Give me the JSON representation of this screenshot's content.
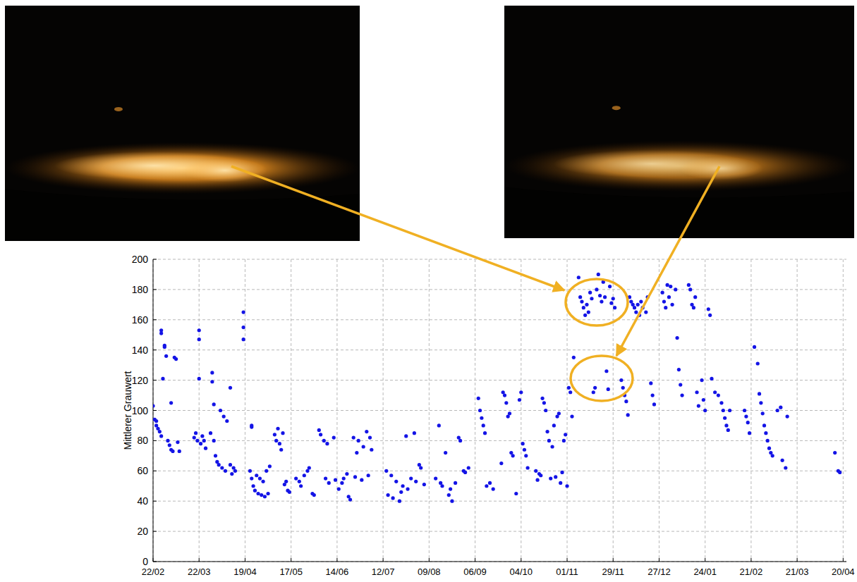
{
  "chart_data": {
    "type": "scatter",
    "y_label": "Mittlerer Grauwert",
    "color": "#1414e6",
    "marker": "circle",
    "grid": true,
    "xlim": [
      0,
      422
    ],
    "ylim": [
      0,
      200
    ],
    "yticks": [
      0,
      20,
      40,
      60,
      80,
      100,
      120,
      140,
      160,
      180,
      200
    ],
    "xticks": [
      {
        "value": 0,
        "label": "22/02"
      },
      {
        "value": 28,
        "label": "22/03"
      },
      {
        "value": 56,
        "label": "19/04"
      },
      {
        "value": 84,
        "label": "17/05"
      },
      {
        "value": 112,
        "label": "14/06"
      },
      {
        "value": 140,
        "label": "12/07"
      },
      {
        "value": 168,
        "label": "09/08"
      },
      {
        "value": 196,
        "label": "06/09"
      },
      {
        "value": 224,
        "label": "04/10"
      },
      {
        "value": 252,
        "label": "01/11"
      },
      {
        "value": 280,
        "label": "29/11"
      },
      {
        "value": 308,
        "label": "27/12"
      },
      {
        "value": 336,
        "label": "24/01"
      },
      {
        "value": 364,
        "label": "21/02"
      },
      {
        "value": 392,
        "label": "21/03"
      },
      {
        "value": 420,
        "label": "20/04"
      }
    ],
    "x": [
      0,
      1,
      2,
      2,
      3,
      4,
      5,
      5,
      5,
      6,
      7,
      7,
      8,
      9,
      10,
      11,
      11,
      12,
      13,
      14,
      15,
      16,
      25,
      26,
      27,
      28,
      28,
      28,
      29,
      30,
      31,
      32,
      35,
      36,
      36,
      37,
      37,
      38,
      39,
      40,
      41,
      42,
      43,
      44,
      45,
      47,
      47,
      48,
      49,
      50,
      55,
      55,
      55,
      60,
      60,
      59,
      60,
      61,
      62,
      63,
      64,
      65,
      66,
      67,
      68,
      69,
      70,
      71,
      74,
      75,
      76,
      77,
      78,
      79,
      80,
      81,
      82,
      83,
      87,
      89,
      90,
      92,
      94,
      95,
      97,
      98,
      101,
      102,
      104,
      105,
      106,
      107,
      110,
      111,
      113,
      115,
      116,
      118,
      119,
      120,
      122,
      123,
      124,
      125,
      127,
      128,
      130,
      131,
      132,
      133,
      142,
      143,
      145,
      146,
      148,
      150,
      151,
      152,
      154,
      155,
      157,
      159,
      160,
      162,
      163,
      165,
      172,
      174,
      175,
      176,
      178,
      180,
      181,
      182,
      184,
      186,
      187,
      189,
      190,
      192,
      198,
      199,
      200,
      201,
      202,
      203,
      205,
      207,
      212,
      213,
      214,
      215,
      216,
      217,
      218,
      219,
      221,
      223,
      224,
      225,
      226,
      227,
      228,
      233,
      235,
      237,
      238,
      239,
      240,
      241,
      242,
      243,
      244,
      246,
      247,
      248,
      250,
      251,
      252,
      253,
      254,
      255,
      256,
      234,
      236,
      245,
      249,
      259,
      260,
      261,
      262,
      263,
      264,
      265,
      266,
      267,
      268,
      269,
      270,
      271,
      272,
      273,
      274,
      275,
      276,
      277,
      278,
      279,
      280,
      281,
      285,
      286,
      287,
      288,
      289,
      290,
      291,
      292,
      293,
      294,
      295,
      296,
      297,
      298,
      300,
      301,
      303,
      304,
      305,
      310,
      311,
      312,
      313,
      314,
      315,
      316,
      318,
      319,
      320,
      321,
      322,
      326,
      327,
      328,
      329,
      330,
      331,
      332,
      334,
      335,
      336,
      338,
      339,
      340,
      342,
      344,
      346,
      347,
      348,
      349,
      350,
      351,
      360,
      361,
      362,
      363,
      366,
      368,
      369,
      370,
      371,
      372,
      373,
      374,
      375,
      376,
      377,
      380,
      382,
      383,
      385,
      386,
      415,
      417,
      418
    ],
    "values": [
      103,
      94,
      93,
      90,
      88,
      86,
      83,
      153,
      151,
      121,
      143,
      142,
      136,
      80,
      77,
      74,
      105,
      73,
      135,
      134,
      79,
      73,
      82,
      85,
      80,
      153,
      147,
      121,
      78,
      83,
      80,
      75,
      85,
      125,
      119,
      80,
      104,
      70,
      66,
      64,
      100,
      62,
      96,
      60,
      93,
      115,
      64,
      58,
      62,
      60,
      165,
      155,
      147,
      90,
      89,
      60,
      55,
      50,
      47,
      57,
      45,
      55,
      44,
      53,
      43,
      60,
      45,
      63,
      84,
      80,
      88,
      78,
      74,
      85,
      51,
      53,
      47,
      46,
      55,
      53,
      50,
      57,
      60,
      62,
      45,
      44,
      87,
      84,
      80,
      55,
      78,
      52,
      82,
      54,
      48,
      52,
      55,
      58,
      43,
      41,
      82,
      56,
      72,
      80,
      54,
      76,
      86,
      57,
      82,
      74,
      60,
      44,
      57,
      42,
      53,
      40,
      46,
      50,
      83,
      48,
      55,
      85,
      53,
      64,
      62,
      51,
      55,
      90,
      52,
      50,
      72,
      44,
      48,
      40,
      52,
      82,
      80,
      60,
      59,
      62,
      108,
      100,
      95,
      90,
      85,
      50,
      52,
      48,
      65,
      112,
      110,
      105,
      96,
      98,
      72,
      70,
      45,
      107,
      112,
      78,
      74,
      70,
      62,
      60,
      58,
      108,
      105,
      100,
      86,
      80,
      55,
      76,
      90,
      96,
      98,
      52,
      80,
      84,
      50,
      115,
      112,
      96,
      135,
      54,
      57,
      56,
      59,
      188,
      175,
      172,
      168,
      163,
      170,
      165,
      178,
      174,
      112,
      115,
      180,
      190,
      176,
      172,
      185,
      175,
      126,
      114,
      182,
      171,
      174,
      168,
      120,
      115,
      110,
      106,
      97,
      175,
      172,
      170,
      168,
      165,
      170,
      163,
      172,
      168,
      165,
      175,
      118,
      110,
      104,
      178,
      172,
      168,
      183,
      175,
      182,
      170,
      180,
      148,
      127,
      117,
      110,
      183,
      180,
      170,
      168,
      175,
      112,
      103,
      120,
      107,
      100,
      167,
      163,
      121,
      112,
      110,
      105,
      100,
      95,
      90,
      87,
      100,
      100,
      96,
      92,
      85,
      142,
      131,
      111,
      105,
      98,
      90,
      85,
      80,
      75,
      72,
      70,
      100,
      102,
      67,
      62,
      96,
      72,
      60,
      59
    ]
  }
}
